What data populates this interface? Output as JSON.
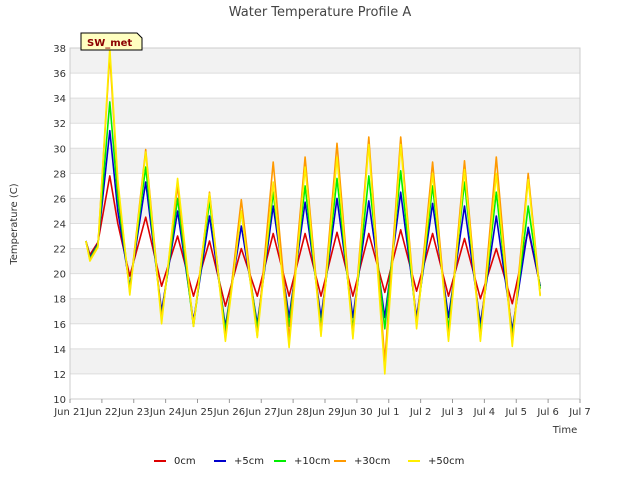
{
  "chart_data": {
    "type": "line",
    "title": "Water Temperature Profile A",
    "xlabel": "Time",
    "ylabel": "Temperature (C)",
    "badge": "SW_met",
    "ylim": [
      10,
      38
    ],
    "yticks": [
      10,
      12,
      14,
      16,
      18,
      20,
      22,
      24,
      26,
      28,
      30,
      32,
      34,
      36,
      38
    ],
    "xlim": [
      "Jun 21",
      "Jul 7"
    ],
    "xticks": [
      "Jun 21",
      "Jun 22",
      "Jun 23",
      "Jun 24",
      "Jun 25",
      "Jun 26",
      "Jun 27",
      "Jun 28",
      "Jun 29",
      "Jun 30",
      "Jul 1",
      "Jul 2",
      "Jul 3",
      "Jul 4",
      "Jul 5",
      "Jul 6",
      "Jul 7"
    ],
    "xtick_labels": [
      "Jun 21",
      "Jun 22",
      "Jun 23",
      "Jun 24",
      "Jun 25",
      "Jun 26",
      "Jun 27",
      "Jun 28",
      "Jun 29",
      "Jun 30",
      "Jul 1",
      "Jul 2",
      "Jul 3",
      "Jul 4",
      "Jul 5",
      "Jul 6",
      "Jul 7"
    ],
    "grid": true,
    "legend_position": "bottom",
    "series": [
      {
        "name": "0cm",
        "color": "#dd0000",
        "points": [
          [
            "Jun 21 12:00",
            22.6
          ],
          [
            "Jun 21 15:00",
            21.5
          ],
          [
            "Jun 21 21:00",
            22.5
          ],
          [
            "Jun 22 06:00",
            27.8
          ],
          [
            "Jun 22 12:00",
            24.0
          ],
          [
            "Jun 22 21:00",
            19.8
          ],
          [
            "Jun 23 09:00",
            24.5
          ],
          [
            "Jun 23 21:00",
            19.0
          ],
          [
            "Jun 24 09:00",
            23.0
          ],
          [
            "Jun 24 21:00",
            18.2
          ],
          [
            "Jun 25 09:00",
            22.6
          ],
          [
            "Jun 25 21:00",
            17.4
          ],
          [
            "Jun 26 09:00",
            22.0
          ],
          [
            "Jun 26 21:00",
            18.2
          ],
          [
            "Jun 27 09:00",
            23.2
          ],
          [
            "Jun 27 21:00",
            18.2
          ],
          [
            "Jun 28 09:00",
            23.2
          ],
          [
            "Jun 28 21:00",
            18.2
          ],
          [
            "Jun 29 09:00",
            23.3
          ],
          [
            "Jun 29 21:00",
            18.2
          ],
          [
            "Jun 30 09:00",
            23.2
          ],
          [
            "Jun 30 21:00",
            18.5
          ],
          [
            "Jul 1 09:00",
            23.5
          ],
          [
            "Jul 1 21:00",
            18.6
          ],
          [
            "Jul 2 09:00",
            23.2
          ],
          [
            "Jul 2 21:00",
            18.2
          ],
          [
            "Jul 3 09:00",
            22.8
          ],
          [
            "Jul 3 21:00",
            18.0
          ],
          [
            "Jul 4 09:00",
            22.0
          ],
          [
            "Jul 4 21:00",
            17.6
          ],
          [
            "Jul 5 09:00",
            23.5
          ],
          [
            "Jul 5 18:00",
            19.0
          ]
        ]
      },
      {
        "name": "+5cm",
        "color": "#0000cc",
        "points": [
          [
            "Jun 21 12:00",
            22.6
          ],
          [
            "Jun 21 15:00",
            21.3
          ],
          [
            "Jun 21 21:00",
            22.4
          ],
          [
            "Jun 22 06:00",
            31.4
          ],
          [
            "Jun 22 12:00",
            25.0
          ],
          [
            "Jun 22 21:00",
            19.0
          ],
          [
            "Jun 23 09:00",
            27.3
          ],
          [
            "Jun 23 21:00",
            17.0
          ],
          [
            "Jun 24 09:00",
            25.0
          ],
          [
            "Jun 24 21:00",
            16.2
          ],
          [
            "Jun 25 09:00",
            24.6
          ],
          [
            "Jun 25 21:00",
            15.8
          ],
          [
            "Jun 26 09:00",
            23.8
          ],
          [
            "Jun 26 21:00",
            16.0
          ],
          [
            "Jun 27 09:00",
            25.4
          ],
          [
            "Jun 27 21:00",
            16.5
          ],
          [
            "Jun 28 09:00",
            25.7
          ],
          [
            "Jun 28 21:00",
            16.5
          ],
          [
            "Jun 29 09:00",
            26.0
          ],
          [
            "Jun 29 21:00",
            16.5
          ],
          [
            "Jun 30 09:00",
            25.8
          ],
          [
            "Jun 30 21:00",
            16.5
          ],
          [
            "Jul 1 09:00",
            26.5
          ],
          [
            "Jul 1 21:00",
            16.5
          ],
          [
            "Jul 2 09:00",
            25.6
          ],
          [
            "Jul 2 21:00",
            16.5
          ],
          [
            "Jul 3 09:00",
            25.4
          ],
          [
            "Jul 3 21:00",
            16.0
          ],
          [
            "Jul 4 09:00",
            24.6
          ],
          [
            "Jul 4 21:00",
            15.5
          ],
          [
            "Jul 5 09:00",
            23.7
          ],
          [
            "Jul 5 18:00",
            19.0
          ]
        ]
      },
      {
        "name": "+10cm",
        "color": "#00ee00",
        "points": [
          [
            "Jun 21 12:00",
            22.6
          ],
          [
            "Jun 21 15:00",
            21.2
          ],
          [
            "Jun 21 21:00",
            22.3
          ],
          [
            "Jun 22 06:00",
            33.7
          ],
          [
            "Jun 22 12:00",
            26.0
          ],
          [
            "Jun 22 21:00",
            18.8
          ],
          [
            "Jun 23 09:00",
            28.5
          ],
          [
            "Jun 23 21:00",
            16.5
          ],
          [
            "Jun 24 09:00",
            26.0
          ],
          [
            "Jun 24 21:00",
            15.8
          ],
          [
            "Jun 25 09:00",
            25.8
          ],
          [
            "Jun 25 21:00",
            15.4
          ],
          [
            "Jun 26 09:00",
            25.0
          ],
          [
            "Jun 26 21:00",
            15.6
          ],
          [
            "Jun 27 09:00",
            26.5
          ],
          [
            "Jun 27 21:00",
            15.8
          ],
          [
            "Jun 28 09:00",
            27.0
          ],
          [
            "Jun 28 21:00",
            15.8
          ],
          [
            "Jun 29 09:00",
            27.6
          ],
          [
            "Jun 29 21:00",
            15.6
          ],
          [
            "Jun 30 09:00",
            27.8
          ],
          [
            "Jun 30 21:00",
            15.6
          ],
          [
            "Jul 1 09:00",
            28.2
          ],
          [
            "Jul 1 21:00",
            16.0
          ],
          [
            "Jul 2 09:00",
            27.0
          ],
          [
            "Jul 2 21:00",
            15.6
          ],
          [
            "Jul 3 09:00",
            27.3
          ],
          [
            "Jul 3 21:00",
            15.3
          ],
          [
            "Jul 4 09:00",
            26.5
          ],
          [
            "Jul 4 21:00",
            15.0
          ],
          [
            "Jul 5 09:00",
            25.4
          ],
          [
            "Jul 5 18:00",
            18.8
          ]
        ]
      },
      {
        "name": "+30cm",
        "color": "#ff9900",
        "points": [
          [
            "Jun 21 12:00",
            22.6
          ],
          [
            "Jun 21 15:00",
            21.1
          ],
          [
            "Jun 21 21:00",
            22.2
          ],
          [
            "Jun 22 06:00",
            37.5
          ],
          [
            "Jun 22 12:00",
            27.0
          ],
          [
            "Jun 22 21:00",
            18.5
          ],
          [
            "Jun 23 09:00",
            29.9
          ],
          [
            "Jun 23 21:00",
            16.3
          ],
          [
            "Jun 24 09:00",
            27.0
          ],
          [
            "Jun 24 21:00",
            15.8
          ],
          [
            "Jun 25 09:00",
            26.5
          ],
          [
            "Jun 25 21:00",
            14.8
          ],
          [
            "Jun 26 09:00",
            25.9
          ],
          [
            "Jun 26 21:00",
            15.0
          ],
          [
            "Jun 27 09:00",
            28.9
          ],
          [
            "Jun 27 21:00",
            14.8
          ],
          [
            "Jun 28 09:00",
            29.3
          ],
          [
            "Jun 28 21:00",
            15.2
          ],
          [
            "Jun 29 09:00",
            30.4
          ],
          [
            "Jun 29 21:00",
            15.0
          ],
          [
            "Jun 30 09:00",
            30.9
          ],
          [
            "Jun 30 21:00",
            13.0
          ],
          [
            "Jul 1 09:00",
            30.9
          ],
          [
            "Jul 1 21:00",
            15.8
          ],
          [
            "Jul 2 09:00",
            28.9
          ],
          [
            "Jul 2 21:00",
            14.8
          ],
          [
            "Jul 3 09:00",
            29.0
          ],
          [
            "Jul 3 21:00",
            14.8
          ],
          [
            "Jul 4 09:00",
            29.3
          ],
          [
            "Jul 4 21:00",
            14.5
          ],
          [
            "Jul 5 09:00",
            28.0
          ],
          [
            "Jul 5 18:00",
            18.3
          ]
        ]
      },
      {
        "name": "+50cm",
        "color": "#ffee00",
        "points": [
          [
            "Jun 21 12:00",
            22.6
          ],
          [
            "Jun 21 15:00",
            21.0
          ],
          [
            "Jun 21 21:00",
            22.1
          ],
          [
            "Jun 22 06:00",
            38.0
          ],
          [
            "Jun 22 12:00",
            27.5
          ],
          [
            "Jun 22 21:00",
            18.3
          ],
          [
            "Jun 23 09:00",
            29.7
          ],
          [
            "Jun 23 21:00",
            16.0
          ],
          [
            "Jun 24 09:00",
            27.6
          ],
          [
            "Jun 24 21:00",
            15.8
          ],
          [
            "Jun 25 09:00",
            26.4
          ],
          [
            "Jun 25 21:00",
            14.6
          ],
          [
            "Jun 26 09:00",
            25.0
          ],
          [
            "Jun 26 21:00",
            14.9
          ],
          [
            "Jun 27 09:00",
            27.3
          ],
          [
            "Jun 27 21:00",
            14.1
          ],
          [
            "Jun 28 09:00",
            28.5
          ],
          [
            "Jun 28 21:00",
            15.0
          ],
          [
            "Jun 29 09:00",
            29.3
          ],
          [
            "Jun 29 21:00",
            14.8
          ],
          [
            "Jun 30 09:00",
            30.3
          ],
          [
            "Jun 30 21:00",
            12.0
          ],
          [
            "Jul 1 09:00",
            30.3
          ],
          [
            "Jul 1 21:00",
            15.6
          ],
          [
            "Jul 2 09:00",
            28.0
          ],
          [
            "Jul 2 21:00",
            14.6
          ],
          [
            "Jul 3 09:00",
            28.3
          ],
          [
            "Jul 3 21:00",
            14.6
          ],
          [
            "Jul 4 09:00",
            28.0
          ],
          [
            "Jul 4 21:00",
            14.2
          ],
          [
            "Jul 5 09:00",
            27.5
          ],
          [
            "Jul 5 18:00",
            18.2
          ]
        ]
      }
    ]
  }
}
